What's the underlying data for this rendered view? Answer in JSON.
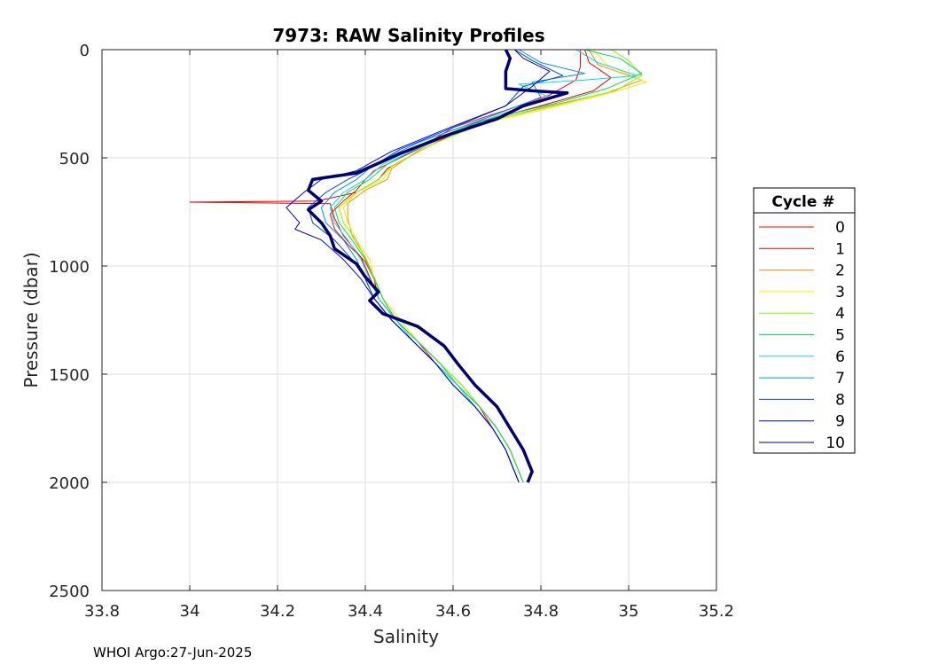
{
  "chart_data": {
    "type": "line",
    "title": "7973: RAW Salinity Profiles",
    "xlabel": "Salinity",
    "ylabel": "Pressure (dbar)",
    "xlim": [
      33.8,
      35.2
    ],
    "ylim": [
      0,
      2500
    ],
    "y_reversed": true,
    "grid": true,
    "x_ticks": [
      33.8,
      34,
      34.2,
      34.4,
      34.6,
      34.8,
      35,
      35.2
    ],
    "x_tick_labels": [
      "33.8",
      "34",
      "34.2",
      "34.4",
      "34.6",
      "34.8",
      "35",
      "35.2"
    ],
    "y_ticks": [
      0,
      500,
      1000,
      1500,
      2000,
      2500
    ],
    "y_tick_labels": [
      "0",
      "500",
      "1000",
      "1500",
      "2000",
      "2500"
    ],
    "legend": {
      "title": "Cycle #",
      "placement": "outside-right"
    },
    "footer": "WHOI Argo:27-Jun-2025",
    "series": [
      {
        "name": "0",
        "color": "#ff0000",
        "values": [
          [
            34.89,
            0
          ],
          [
            34.89,
            80
          ],
          [
            34.88,
            140
          ],
          [
            34.82,
            210
          ],
          [
            34.72,
            280
          ],
          [
            34.6,
            360
          ],
          [
            34.52,
            460
          ],
          [
            34.42,
            560
          ],
          [
            34.4,
            600
          ],
          [
            34.38,
            650
          ],
          [
            34.35,
            700
          ],
          [
            34.32,
            760
          ],
          [
            34.33,
            830
          ],
          [
            34.36,
            900
          ],
          [
            34.4,
            980
          ],
          [
            34.42,
            1060
          ],
          [
            34.43,
            1150
          ],
          [
            34.47,
            1250
          ],
          [
            34.52,
            1350
          ],
          [
            34.56,
            1450
          ],
          [
            34.61,
            1550
          ],
          [
            34.66,
            1650
          ],
          [
            34.69,
            1750
          ],
          [
            34.72,
            1850
          ],
          [
            34.74,
            1950
          ],
          [
            34.75,
            2000
          ]
        ]
      },
      {
        "name": "1",
        "color": "#e80000",
        "values": [
          [
            34.9,
            0
          ],
          [
            34.91,
            60
          ],
          [
            34.96,
            130
          ],
          [
            34.92,
            190
          ],
          [
            34.8,
            260
          ],
          [
            34.65,
            340
          ],
          [
            34.55,
            440
          ],
          [
            34.45,
            550
          ],
          [
            34.43,
            600
          ],
          [
            34.38,
            660
          ],
          [
            34.29,
            700
          ],
          [
            34.0,
            705
          ],
          [
            34.32,
            712
          ],
          [
            34.33,
            780
          ],
          [
            34.35,
            860
          ],
          [
            34.39,
            960
          ],
          [
            34.41,
            1050
          ],
          [
            34.43,
            1150
          ],
          [
            34.47,
            1250
          ],
          [
            34.52,
            1350
          ],
          [
            34.57,
            1450
          ],
          [
            34.62,
            1550
          ],
          [
            34.66,
            1650
          ],
          [
            34.7,
            1750
          ],
          [
            34.73,
            1850
          ],
          [
            34.75,
            1950
          ],
          [
            34.76,
            2000
          ]
        ]
      },
      {
        "name": "2",
        "color": "#ff8c00",
        "values": [
          [
            34.91,
            0
          ],
          [
            34.93,
            70
          ],
          [
            35.03,
            140
          ],
          [
            34.95,
            200
          ],
          [
            34.82,
            260
          ],
          [
            34.66,
            340
          ],
          [
            34.54,
            440
          ],
          [
            34.46,
            550
          ],
          [
            34.45,
            600
          ],
          [
            34.4,
            650
          ],
          [
            34.36,
            710
          ],
          [
            34.36,
            780
          ],
          [
            34.37,
            860
          ],
          [
            34.4,
            960
          ],
          [
            34.42,
            1050
          ],
          [
            34.44,
            1150
          ],
          [
            34.47,
            1250
          ],
          [
            34.52,
            1350
          ],
          [
            34.57,
            1450
          ],
          [
            34.62,
            1550
          ],
          [
            34.66,
            1650
          ],
          [
            34.7,
            1750
          ],
          [
            34.73,
            1850
          ],
          [
            34.75,
            1950
          ],
          [
            34.76,
            2000
          ]
        ]
      },
      {
        "name": "3",
        "color": "#ffe800",
        "values": [
          [
            34.92,
            0
          ],
          [
            34.95,
            70
          ],
          [
            35.04,
            150
          ],
          [
            34.96,
            200
          ],
          [
            34.82,
            270
          ],
          [
            34.67,
            340
          ],
          [
            34.55,
            440
          ],
          [
            34.46,
            540
          ],
          [
            34.44,
            600
          ],
          [
            34.38,
            660
          ],
          [
            34.35,
            730
          ],
          [
            34.36,
            800
          ],
          [
            34.38,
            880
          ],
          [
            34.41,
            970
          ],
          [
            34.42,
            1060
          ],
          [
            34.44,
            1150
          ],
          [
            34.48,
            1250
          ],
          [
            34.52,
            1350
          ],
          [
            34.57,
            1450
          ],
          [
            34.62,
            1550
          ],
          [
            34.66,
            1650
          ],
          [
            34.7,
            1750
          ],
          [
            34.73,
            1850
          ],
          [
            34.75,
            1950
          ],
          [
            34.76,
            2000
          ]
        ]
      },
      {
        "name": "4",
        "color": "#80ff00",
        "values": [
          [
            34.96,
            0
          ],
          [
            35.0,
            50
          ],
          [
            35.03,
            120
          ],
          [
            34.97,
            190
          ],
          [
            34.83,
            260
          ],
          [
            34.68,
            330
          ],
          [
            34.55,
            440
          ],
          [
            34.46,
            540
          ],
          [
            34.43,
            600
          ],
          [
            34.38,
            660
          ],
          [
            34.34,
            730
          ],
          [
            34.35,
            800
          ],
          [
            34.38,
            880
          ],
          [
            34.4,
            970
          ],
          [
            34.42,
            1060
          ],
          [
            34.44,
            1150
          ],
          [
            34.47,
            1250
          ],
          [
            34.52,
            1350
          ],
          [
            34.57,
            1450
          ],
          [
            34.62,
            1550
          ],
          [
            34.66,
            1650
          ],
          [
            34.7,
            1750
          ],
          [
            34.73,
            1850
          ],
          [
            34.75,
            1950
          ],
          [
            34.76,
            2000
          ]
        ]
      },
      {
        "name": "5",
        "color": "#00e060",
        "values": [
          [
            34.9,
            0
          ],
          [
            34.98,
            40
          ],
          [
            35.03,
            110
          ],
          [
            34.95,
            180
          ],
          [
            34.83,
            250
          ],
          [
            34.66,
            330
          ],
          [
            34.54,
            430
          ],
          [
            34.45,
            530
          ],
          [
            34.41,
            600
          ],
          [
            34.36,
            660
          ],
          [
            34.33,
            730
          ],
          [
            34.34,
            800
          ],
          [
            34.37,
            880
          ],
          [
            34.4,
            970
          ],
          [
            34.42,
            1060
          ],
          [
            34.44,
            1150
          ],
          [
            34.47,
            1250
          ],
          [
            34.52,
            1350
          ],
          [
            34.57,
            1450
          ],
          [
            34.61,
            1550
          ],
          [
            34.66,
            1650
          ],
          [
            34.7,
            1750
          ],
          [
            34.73,
            1850
          ],
          [
            34.75,
            1950
          ],
          [
            34.76,
            2000
          ]
        ]
      },
      {
        "name": "6",
        "color": "#00e0e0",
        "values": [
          [
            34.88,
            0
          ],
          [
            34.93,
            60
          ],
          [
            35.02,
            120
          ],
          [
            34.9,
            140
          ],
          [
            34.75,
            160
          ],
          [
            34.82,
            220
          ],
          [
            34.68,
            320
          ],
          [
            34.55,
            430
          ],
          [
            34.44,
            530
          ],
          [
            34.4,
            600
          ],
          [
            34.35,
            660
          ],
          [
            34.32,
            730
          ],
          [
            34.33,
            800
          ],
          [
            34.36,
            880
          ],
          [
            34.39,
            970
          ],
          [
            34.41,
            1060
          ],
          [
            34.43,
            1150
          ],
          [
            34.47,
            1250
          ],
          [
            34.51,
            1350
          ],
          [
            34.56,
            1450
          ],
          [
            34.61,
            1550
          ],
          [
            34.65,
            1650
          ],
          [
            34.69,
            1750
          ],
          [
            34.72,
            1850
          ],
          [
            34.74,
            1950
          ],
          [
            34.75,
            2000
          ]
        ]
      },
      {
        "name": "7",
        "color": "#0090ff",
        "values": [
          [
            34.75,
            0
          ],
          [
            34.8,
            60
          ],
          [
            34.9,
            110
          ],
          [
            34.78,
            150
          ],
          [
            34.8,
            220
          ],
          [
            34.67,
            320
          ],
          [
            34.52,
            430
          ],
          [
            34.42,
            530
          ],
          [
            34.38,
            600
          ],
          [
            34.33,
            660
          ],
          [
            34.3,
            730
          ],
          [
            34.31,
            800
          ],
          [
            34.35,
            880
          ],
          [
            34.38,
            970
          ],
          [
            34.4,
            1060
          ],
          [
            34.42,
            1150
          ],
          [
            34.46,
            1250
          ],
          [
            34.51,
            1350
          ],
          [
            34.56,
            1450
          ],
          [
            34.6,
            1550
          ],
          [
            34.65,
            1650
          ],
          [
            34.69,
            1750
          ],
          [
            34.72,
            1850
          ],
          [
            34.74,
            1950
          ],
          [
            34.75,
            2000
          ]
        ]
      },
      {
        "name": "8",
        "color": "#0040ff",
        "values": [
          [
            34.74,
            0
          ],
          [
            34.78,
            50
          ],
          [
            34.85,
            120
          ],
          [
            34.76,
            170
          ],
          [
            34.72,
            260
          ],
          [
            34.6,
            360
          ],
          [
            34.48,
            460
          ],
          [
            34.4,
            560
          ],
          [
            34.36,
            600
          ],
          [
            34.31,
            660
          ],
          [
            34.27,
            730
          ],
          [
            34.28,
            800
          ],
          [
            34.33,
            880
          ],
          [
            34.37,
            970
          ],
          [
            34.4,
            1060
          ],
          [
            34.42,
            1150
          ],
          [
            34.46,
            1250
          ],
          [
            34.51,
            1350
          ],
          [
            34.56,
            1450
          ],
          [
            34.6,
            1550
          ],
          [
            34.65,
            1650
          ],
          [
            34.69,
            1750
          ],
          [
            34.72,
            1850
          ],
          [
            34.74,
            1950
          ],
          [
            34.75,
            2000
          ]
        ]
      },
      {
        "name": "9",
        "color": "#0000cc",
        "values": [
          [
            34.74,
            0
          ],
          [
            34.76,
            40
          ],
          [
            34.82,
            100
          ],
          [
            34.78,
            170
          ],
          [
            34.72,
            260
          ],
          [
            34.58,
            370
          ],
          [
            34.46,
            470
          ],
          [
            34.38,
            560
          ],
          [
            34.3,
            600
          ],
          [
            34.26,
            660
          ],
          [
            34.22,
            730
          ],
          [
            34.25,
            800
          ],
          [
            34.24,
            830
          ],
          [
            34.3,
            880
          ],
          [
            34.35,
            970
          ],
          [
            34.39,
            1060
          ],
          [
            34.42,
            1150
          ],
          [
            34.46,
            1250
          ],
          [
            34.51,
            1350
          ],
          [
            34.56,
            1450
          ],
          [
            34.6,
            1550
          ],
          [
            34.65,
            1650
          ],
          [
            34.69,
            1750
          ],
          [
            34.72,
            1850
          ],
          [
            34.74,
            1950
          ],
          [
            34.75,
            2000
          ]
        ]
      },
      {
        "name": "10",
        "color": "#000070",
        "values": [
          [
            34.72,
            0
          ],
          [
            34.73,
            40
          ],
          [
            34.72,
            100
          ],
          [
            34.72,
            180
          ],
          [
            34.78,
            190
          ],
          [
            34.86,
            200
          ],
          [
            34.76,
            260
          ],
          [
            34.7,
            320
          ],
          [
            34.58,
            400
          ],
          [
            34.48,
            480
          ],
          [
            34.38,
            570
          ],
          [
            34.28,
            600
          ],
          [
            34.27,
            650
          ],
          [
            34.3,
            700
          ],
          [
            34.27,
            740
          ],
          [
            34.3,
            800
          ],
          [
            34.32,
            860
          ],
          [
            34.33,
            920
          ],
          [
            34.38,
            990
          ],
          [
            34.4,
            1050
          ],
          [
            34.43,
            1120
          ],
          [
            34.41,
            1160
          ],
          [
            34.44,
            1220
          ],
          [
            34.52,
            1280
          ],
          [
            34.58,
            1370
          ],
          [
            34.61,
            1450
          ],
          [
            34.65,
            1550
          ],
          [
            34.7,
            1650
          ],
          [
            34.73,
            1750
          ],
          [
            34.76,
            1850
          ],
          [
            34.78,
            1950
          ],
          [
            34.77,
            2000
          ]
        ]
      }
    ]
  }
}
